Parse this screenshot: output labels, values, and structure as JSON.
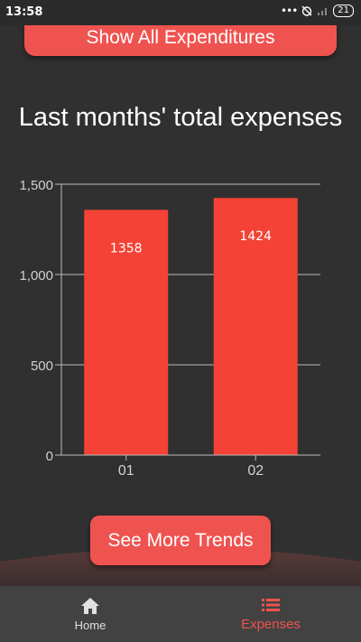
{
  "status_bar": {
    "time": "13:58",
    "dots": "•••",
    "battery": "21"
  },
  "buttons": {
    "show_all": "Show All Expenditures",
    "see_more": "See More Trends"
  },
  "chart_data": {
    "type": "bar",
    "title": "Last months' total expenses",
    "categories": [
      "01",
      "02"
    ],
    "values": [
      1358,
      1424
    ],
    "data_labels": [
      "1358",
      "1424"
    ],
    "ylim": [
      0,
      1500
    ],
    "yticks": [
      0,
      500,
      1000,
      1500
    ],
    "ytick_labels": [
      "0",
      "500",
      "1,000",
      "1,500"
    ],
    "grid": true,
    "bar_color": "#f44336"
  },
  "nav": {
    "items": [
      {
        "label": "Home",
        "icon": "home-icon"
      },
      {
        "label": "Expenses",
        "icon": "list-icon"
      }
    ],
    "active_color": "#ef5350"
  }
}
